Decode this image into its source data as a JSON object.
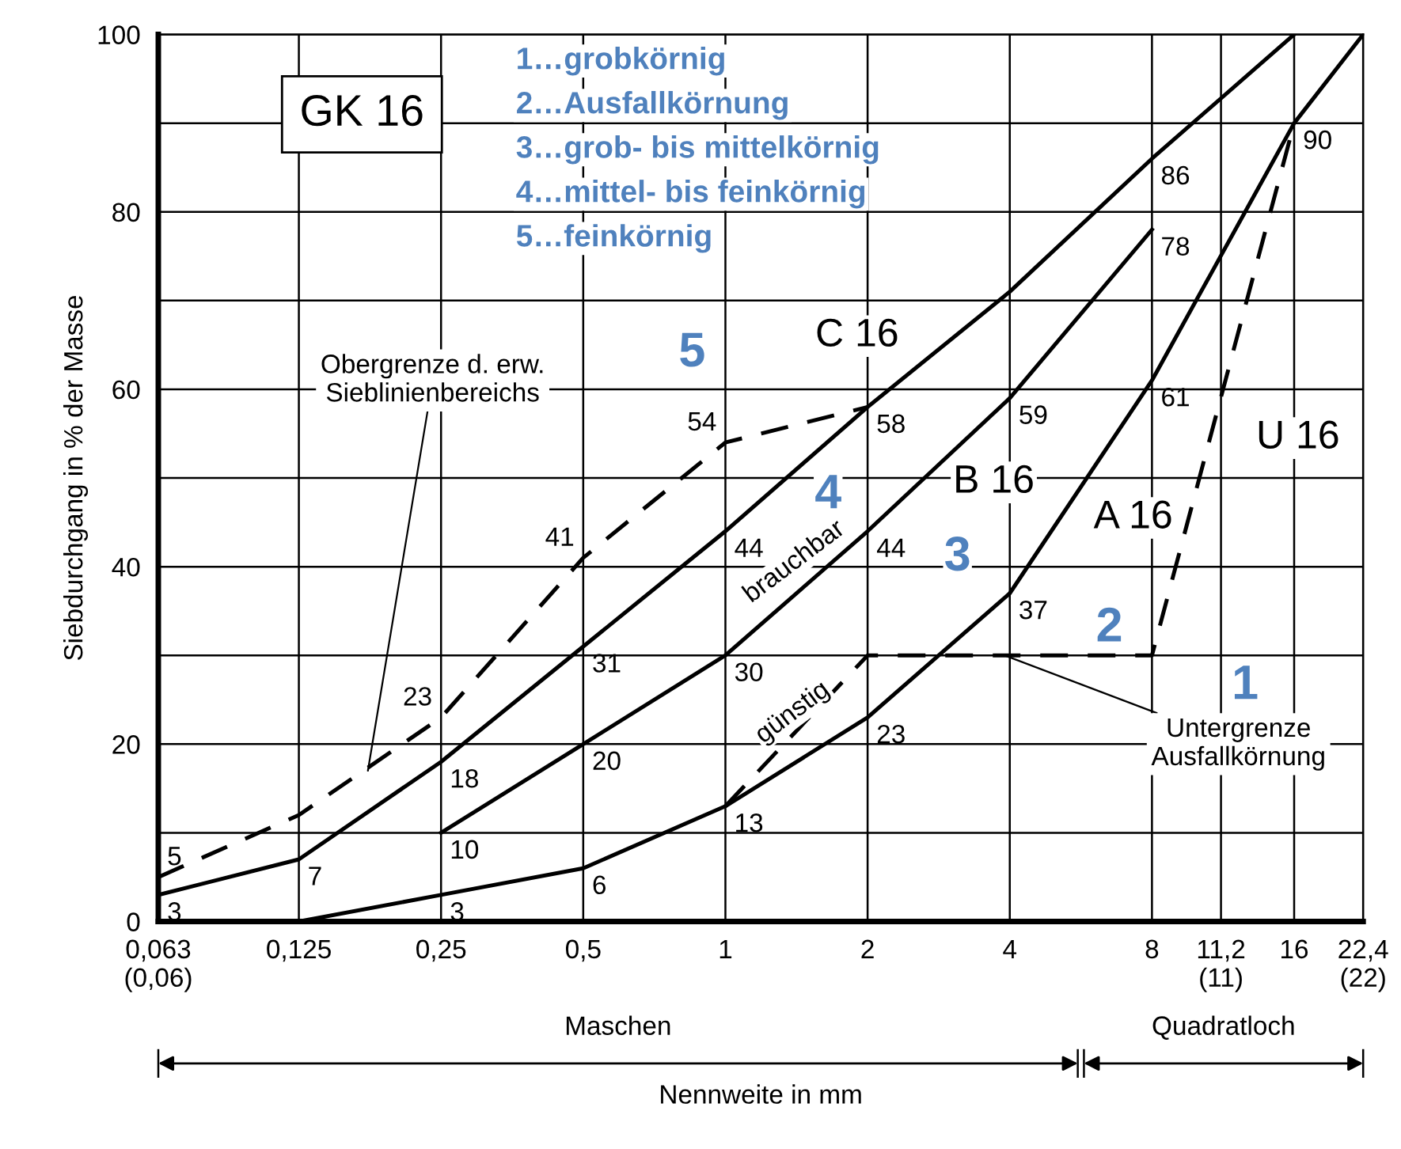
{
  "chart_data": {
    "type": "line",
    "xlabel": "Nennweite in mm",
    "ylabel": "Siebdurchgang in % der Masse",
    "log": "x",
    "grid": true,
    "line_style": "solid",
    "marker": "none",
    "xlim": [
      0.063,
      22.4
    ],
    "xticks": [
      {
        "value": 0.063,
        "label": "0,063\n(0,06)"
      },
      {
        "value": 0.125,
        "label": "0,125"
      },
      {
        "value": 0.25,
        "label": "0,25"
      },
      {
        "value": 0.5,
        "label": "0,5"
      },
      1,
      2,
      4,
      8,
      {
        "value": 11.2,
        "label": "11,2\n(11)"
      },
      16,
      {
        "value": 22.4,
        "label": "22,4\n(22)"
      }
    ],
    "ylim": [
      0,
      100
    ],
    "yticks": [
      0,
      {
        "value": 10,
        "label": null
      },
      20,
      {
        "value": 30,
        "label": null
      },
      40,
      {
        "value": 50,
        "label": null
      },
      60,
      {
        "value": 70,
        "label": null
      },
      80,
      {
        "value": 90,
        "label": null
      },
      100
    ],
    "series": [
      {
        "name": "C 16",
        "color": "#000000",
        "x": [
          0.063,
          0.125,
          0.25,
          0.5,
          1,
          2,
          4,
          8,
          16
        ],
        "values": [
          3,
          7,
          18,
          31,
          44,
          58,
          71,
          86,
          100
        ],
        "value_labels": [
          "3",
          "7",
          "18",
          "31",
          "44",
          "58",
          null,
          "86",
          null
        ]
      },
      {
        "name": "B 16",
        "color": "#000000",
        "x": [
          0.25,
          0.5,
          1,
          2,
          4,
          8
        ],
        "values": [
          10,
          20,
          30,
          44,
          59,
          78
        ],
        "value_labels": [
          "10",
          "20",
          "30",
          "44",
          "59",
          "78"
        ]
      },
      {
        "name": "A 16",
        "color": "#000000",
        "x": [
          0.125,
          0.25,
          0.5,
          1,
          2,
          4,
          8,
          16,
          22.4
        ],
        "values": [
          0,
          3,
          6,
          13,
          23,
          37,
          61,
          90,
          100
        ],
        "value_labels": [
          null,
          "3",
          "6",
          "13",
          "23",
          "37",
          "61",
          "90",
          null
        ]
      },
      {
        "name": "U 16",
        "color": "#000000",
        "line_style": "dashed",
        "x": [
          1,
          2,
          4,
          8,
          16
        ],
        "values": [
          13,
          30,
          30,
          30,
          90
        ]
      },
      {
        "color": "#000000",
        "line_style": "dashed",
        "x": [
          0.063,
          0.125,
          0.25,
          0.5,
          1,
          2
        ],
        "values": [
          5,
          12,
          23,
          41,
          54,
          58
        ],
        "value_labels": [
          "5",
          null,
          "23",
          "41",
          "54",
          null
        ]
      }
    ],
    "annotations": [
      "GK 16",
      "1…grobkörnig",
      "2…Ausfallkörnung",
      "3…grob- bis mittelkörnig",
      "4…mittel- bis feinkörnig",
      "5…feinkörnig",
      "5",
      "4",
      "3",
      "2",
      "1",
      "brauchbar",
      "günstig",
      {
        "text": "Obergrenze d. erw.\nSieblinienbereichs",
        "x": 0.175,
        "y": 17
      },
      {
        "text": "Untergrenze\nAusfallkörnung",
        "x": 3.9,
        "y": 30
      },
      "Maschen",
      "Quadratloch"
    ]
  }
}
